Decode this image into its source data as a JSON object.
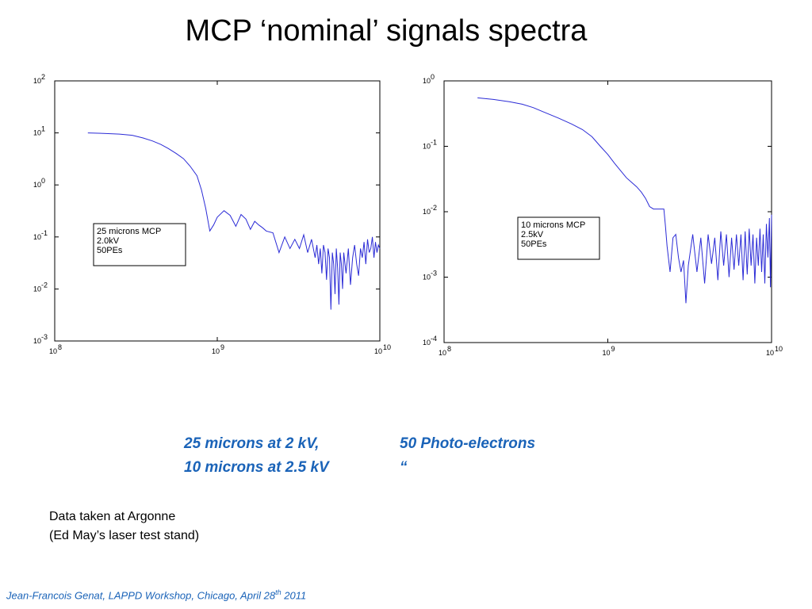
{
  "slide": {
    "title": "MCP ‘nominal’ signals spectra",
    "notes_blue": [
      {
        "left": "25 microns at  2 kV,",
        "right": "50 Photo-electrons"
      },
      {
        "left": "10 microns at  2.5 kV",
        "right": "“"
      }
    ],
    "notes": [
      "Data taken at Argonne",
      "(Ed May’s laser test stand)"
    ],
    "footer": {
      "text": "Jean-Francois Genat,  LAPPD Workshop, Chicago, April 28",
      "sup": "th",
      "year": " 2011"
    }
  },
  "colors": {
    "line": "#2b2bd6",
    "text_blue": "#1a63b8"
  },
  "chart_data": [
    {
      "type": "line",
      "x_scale": "log",
      "y_scale": "log",
      "xlim": [
        100000000.0,
        10000000000.0
      ],
      "ylim": [
        0.001,
        100.0
      ],
      "x_ticks": [
        {
          "base": "10",
          "exp": "8"
        },
        {
          "base": "10",
          "exp": "9"
        },
        {
          "base": "10",
          "exp": "10"
        }
      ],
      "y_ticks": [
        {
          "base": "10",
          "exp": "-3"
        },
        {
          "base": "10",
          "exp": "-2"
        },
        {
          "base": "10",
          "exp": "-1"
        },
        {
          "base": "10",
          "exp": "0"
        },
        {
          "base": "10",
          "exp": "1"
        },
        {
          "base": "10",
          "exp": "2"
        }
      ],
      "legend": [
        "25 microns MCP",
        "2.0kV",
        "50PEs"
      ],
      "legend_position": "center-left",
      "series": [
        {
          "x": [
            160000000.0,
            200000000.0,
            250000000.0,
            300000000.0,
            350000000.0,
            400000000.0,
            450000000.0,
            500000000.0,
            560000000.0,
            620000000.0,
            680000000.0,
            750000000.0,
            800000000.0,
            850000000.0,
            900000000.0,
            950000000.0,
            1000000000.0,
            1100000000.0,
            1200000000.0,
            1300000000.0,
            1400000000.0,
            1500000000.0,
            1600000000.0,
            1700000000.0,
            1800000000.0,
            1900000000.0,
            2000000000.0,
            2200000000.0,
            2400000000.0,
            2600000000.0,
            2800000000.0,
            3000000000.0,
            3200000000.0,
            3400000000.0,
            3600000000.0,
            3800000000.0,
            4000000000.0,
            4100000000.0,
            4200000000.0,
            4300000000.0,
            4400000000.0,
            4500000000.0,
            4600000000.0,
            4700000000.0,
            4800000000.0,
            4900000000.0,
            5000000000.0,
            5100000000.0,
            5200000000.0,
            5300000000.0,
            5400000000.0,
            5500000000.0,
            5600000000.0,
            5700000000.0,
            5800000000.0,
            5900000000.0,
            6000000000.0,
            6200000000.0,
            6400000000.0,
            6600000000.0,
            6800000000.0,
            7000000000.0,
            7200000000.0,
            7400000000.0,
            7600000000.0,
            7800000000.0,
            8000000000.0,
            8200000000.0,
            8400000000.0,
            8600000000.0,
            8800000000.0,
            9000000000.0,
            9200000000.0,
            9400000000.0,
            9600000000.0,
            9800000000.0,
            10000000000.0
          ],
          "y": [
            10,
            9.8,
            9.5,
            9,
            8,
            7,
            6,
            5,
            4,
            3.2,
            2.3,
            1.5,
            0.8,
            0.35,
            0.13,
            0.17,
            0.24,
            0.32,
            0.26,
            0.16,
            0.27,
            0.22,
            0.14,
            0.2,
            0.17,
            0.15,
            0.13,
            0.12,
            0.05,
            0.1,
            0.06,
            0.09,
            0.06,
            0.11,
            0.05,
            0.09,
            0.04,
            0.07,
            0.03,
            0.06,
            0.02,
            0.07,
            0.05,
            0.015,
            0.06,
            0.04,
            0.004,
            0.05,
            0.03,
            0.008,
            0.06,
            0.025,
            0.005,
            0.05,
            0.03,
            0.01,
            0.05,
            0.02,
            0.06,
            0.012,
            0.04,
            0.07,
            0.03,
            0.018,
            0.06,
            0.04,
            0.08,
            0.03,
            0.09,
            0.05,
            0.06,
            0.1,
            0.04,
            0.08,
            0.05,
            0.07,
            0.06
          ]
        }
      ]
    },
    {
      "type": "line",
      "x_scale": "log",
      "y_scale": "log",
      "xlim": [
        100000000.0,
        10000000000.0
      ],
      "ylim": [
        0.0001,
        1
      ],
      "x_ticks": [
        {
          "base": "10",
          "exp": "8"
        },
        {
          "base": "10",
          "exp": "9"
        },
        {
          "base": "10",
          "exp": "10"
        }
      ],
      "y_ticks": [
        {
          "base": "10",
          "exp": "-4"
        },
        {
          "base": "10",
          "exp": "-3"
        },
        {
          "base": "10",
          "exp": "-2"
        },
        {
          "base": "10",
          "exp": "-1"
        },
        {
          "base": "10",
          "exp": "0"
        }
      ],
      "legend": [
        "10 microns MCP",
        "2.5kV",
        "50PEs"
      ],
      "legend_position": "center-right",
      "series": [
        {
          "x": [
            160000000.0,
            200000000.0,
            250000000.0,
            300000000.0,
            350000000.0,
            400000000.0,
            500000000.0,
            600000000.0,
            700000000.0,
            800000000.0,
            900000000.0,
            1000000000.0,
            1100000000.0,
            1200000000.0,
            1300000000.0,
            1400000000.0,
            1500000000.0,
            1600000000.0,
            1700000000.0,
            1800000000.0,
            1900000000.0,
            2000000000.0,
            2100000000.0,
            2200000000.0,
            2250000000.0,
            2300000000.0,
            2400000000.0,
            2500000000.0,
            2600000000.0,
            2700000000.0,
            2800000000.0,
            2900000000.0,
            3000000000.0,
            3100000000.0,
            3300000000.0,
            3500000000.0,
            3700000000.0,
            3900000000.0,
            4100000000.0,
            4300000000.0,
            4500000000.0,
            4700000000.0,
            4900000000.0,
            5100000000.0,
            5300000000.0,
            5500000000.0,
            5700000000.0,
            5900000000.0,
            6100000000.0,
            6300000000.0,
            6500000000.0,
            6700000000.0,
            6900000000.0,
            7100000000.0,
            7300000000.0,
            7500000000.0,
            7700000000.0,
            7900000000.0,
            8100000000.0,
            8300000000.0,
            8500000000.0,
            8700000000.0,
            8900000000.0,
            9100000000.0,
            9300000000.0,
            9500000000.0,
            9700000000.0,
            9850000000.0,
            10000000000.0
          ],
          "y": [
            0.55,
            0.52,
            0.48,
            0.44,
            0.39,
            0.34,
            0.27,
            0.22,
            0.18,
            0.14,
            0.1,
            0.075,
            0.055,
            0.042,
            0.033,
            0.028,
            0.024,
            0.02,
            0.016,
            0.012,
            0.011,
            0.011,
            0.011,
            0.011,
            0.006,
            0.003,
            0.0012,
            0.004,
            0.0045,
            0.002,
            0.0012,
            0.0018,
            0.0004,
            0.0015,
            0.0045,
            0.0012,
            0.004,
            0.0008,
            0.0045,
            0.0016,
            0.004,
            0.0009,
            0.005,
            0.0015,
            0.0045,
            0.001,
            0.004,
            0.0013,
            0.0045,
            0.0015,
            0.0045,
            0.0009,
            0.005,
            0.0011,
            0.0055,
            0.0015,
            0.0045,
            0.0008,
            0.004,
            0.0015,
            0.0055,
            0.0012,
            0.0045,
            0.0008,
            0.0065,
            0.002,
            0.008,
            0.0007,
            0.009
          ]
        }
      ]
    }
  ]
}
